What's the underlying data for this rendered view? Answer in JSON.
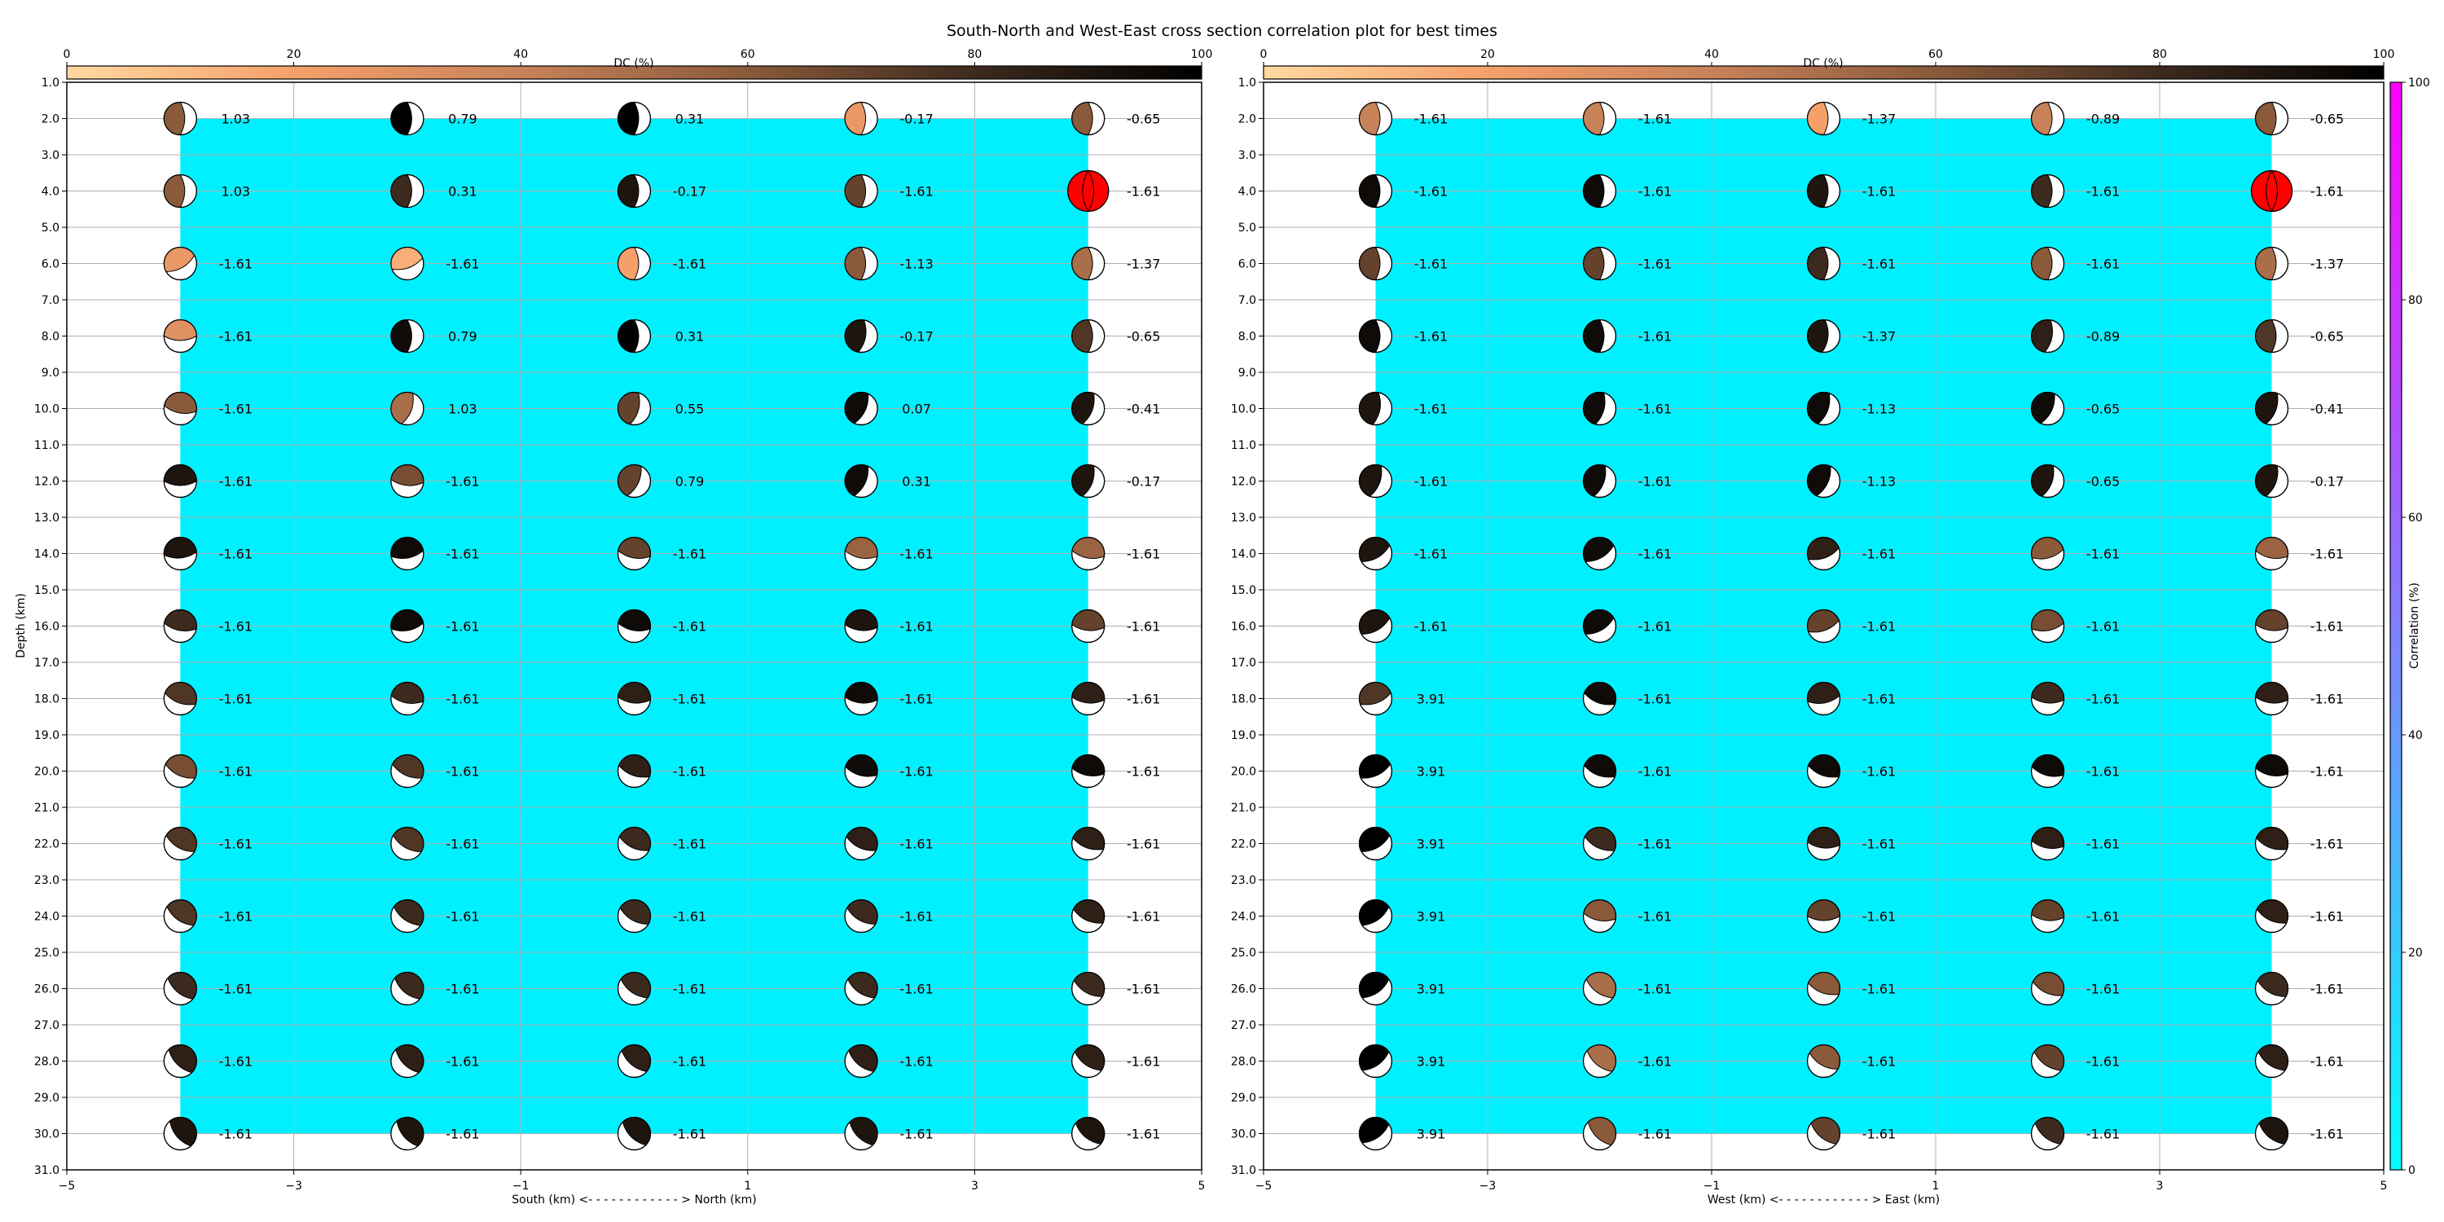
{
  "title": "South-North and West-East cross section correlation plot for best times",
  "colors": {
    "background": "#00f0ff",
    "frame": "#000000",
    "grid": "#b0b0b0",
    "best_fill": "#ff0000",
    "dc_colormap": [
      "#ffd9a0",
      "#f5a06a",
      "#c8825a",
      "#8a5a3a",
      "#3d2a1e",
      "#000000"
    ],
    "corr_colormap": [
      "#00ffff",
      "#ff00ff"
    ]
  },
  "dc_colorbar": {
    "label": "DC (%)",
    "ticks": [
      "0",
      "20",
      "40",
      "60",
      "80",
      "100"
    ]
  },
  "corr_colorbar": {
    "label": "Correlation (%)",
    "ticks": [
      "0",
      "20",
      "40",
      "60",
      "80",
      "100"
    ]
  },
  "chart_data": [
    {
      "type": "scatter",
      "subtype": "focal-mechanism-grid",
      "xlabel": "South (km) <- - - - - - - - - - - - > North (km)",
      "ylabel": "Depth (km)",
      "xlim": [
        -5,
        5
      ],
      "ylim": [
        31,
        1
      ],
      "xticks": [
        "−5",
        "−3",
        "−1",
        "1",
        "3",
        "5"
      ],
      "yticks": [
        "1.0",
        "2.0",
        "3.0",
        "4.0",
        "5.0",
        "6.0",
        "7.0",
        "8.0",
        "9.0",
        "10.0",
        "11.0",
        "12.0",
        "13.0",
        "14.0",
        "15.0",
        "16.0",
        "17.0",
        "18.0",
        "19.0",
        "20.0",
        "21.0",
        "22.0",
        "23.0",
        "24.0",
        "25.0",
        "26.0",
        "27.0",
        "28.0",
        "29.0",
        "30.0",
        "31.0"
      ],
      "x": [
        -4,
        -2,
        0,
        2,
        4
      ],
      "depths": [
        2,
        4,
        6,
        8,
        10,
        12,
        14,
        16,
        18,
        20,
        22,
        24,
        26,
        28,
        30
      ],
      "labels": [
        [
          "1.03",
          "0.79",
          "0.31",
          "-0.17",
          "-0.65"
        ],
        [
          "1.03",
          "0.31",
          "-0.17",
          "-1.61",
          "-1.61"
        ],
        [
          "-1.61",
          "-1.61",
          "-1.61",
          "-1.13",
          "-1.37"
        ],
        [
          "-1.61",
          "0.79",
          "0.31",
          "-0.17",
          "-0.65"
        ],
        [
          "-1.61",
          "1.03",
          "0.55",
          "0.07",
          "-0.41"
        ],
        [
          "-1.61",
          "-1.61",
          "0.79",
          "0.31",
          "-0.17"
        ],
        [
          "-1.61",
          "-1.61",
          "-1.61",
          "-1.61",
          "-1.61"
        ],
        [
          "-1.61",
          "-1.61",
          "-1.61",
          "-1.61",
          "-1.61"
        ],
        [
          "-1.61",
          "-1.61",
          "-1.61",
          "-1.61",
          "-1.61"
        ],
        [
          "-1.61",
          "-1.61",
          "-1.61",
          "-1.61",
          "-1.61"
        ],
        [
          "-1.61",
          "-1.61",
          "-1.61",
          "-1.61",
          "-1.61"
        ],
        [
          "-1.61",
          "-1.61",
          "-1.61",
          "-1.61",
          "-1.61"
        ],
        [
          "-1.61",
          "-1.61",
          "-1.61",
          "-1.61",
          "-1.61"
        ],
        [
          "-1.61",
          "-1.61",
          "-1.61",
          "-1.61",
          "-1.61"
        ],
        [
          "-1.61",
          "-1.61",
          "-1.61",
          "-1.61",
          "-1.61"
        ]
      ],
      "dc": [
        [
          60,
          100,
          100,
          25,
          60
        ],
        [
          60,
          80,
          90,
          70,
          60
        ],
        [
          25,
          15,
          20,
          60,
          50
        ],
        [
          30,
          95,
          100,
          90,
          75
        ],
        [
          60,
          50,
          70,
          95,
          90
        ],
        [
          90,
          65,
          70,
          95,
          90
        ],
        [
          90,
          95,
          70,
          55,
          55
        ],
        [
          80,
          95,
          95,
          90,
          70
        ],
        [
          75,
          80,
          85,
          95,
          85
        ],
        [
          65,
          75,
          85,
          95,
          95
        ],
        [
          75,
          75,
          80,
          85,
          85
        ],
        [
          75,
          80,
          80,
          80,
          85
        ],
        [
          80,
          80,
          80,
          80,
          80
        ],
        [
          85,
          85,
          85,
          85,
          85
        ],
        [
          90,
          90,
          90,
          90,
          90
        ]
      ],
      "strike": [
        [
          0,
          0,
          0,
          0,
          0
        ],
        [
          0,
          0,
          0,
          0,
          0
        ],
        [
          60,
          70,
          0,
          0,
          0
        ],
        [
          90,
          0,
          0,
          10,
          0
        ],
        [
          100,
          20,
          15,
          25,
          20
        ],
        [
          90,
          95,
          25,
          25,
          20
        ],
        [
          85,
          80,
          100,
          100,
          100
        ],
        [
          100,
          80,
          100,
          95,
          95
        ],
        [
          110,
          100,
          95,
          95,
          95
        ],
        [
          115,
          115,
          110,
          105,
          100
        ],
        [
          120,
          120,
          115,
          115,
          110
        ],
        [
          125,
          125,
          120,
          120,
          115
        ],
        [
          130,
          130,
          125,
          125,
          120
        ],
        [
          135,
          135,
          130,
          130,
          125
        ],
        [
          140,
          140,
          135,
          135,
          130
        ]
      ],
      "best": [
        1,
        4
      ]
    },
    {
      "type": "scatter",
      "subtype": "focal-mechanism-grid",
      "xlabel": "West (km) <- - - - - - - - - - - - > East (km)",
      "ylabel": "",
      "xlim": [
        -5,
        5
      ],
      "ylim": [
        31,
        1
      ],
      "xticks": [
        "−5",
        "−3",
        "−1",
        "1",
        "3",
        "5"
      ],
      "yticks": [
        "1.0",
        "2.0",
        "3.0",
        "4.0",
        "5.0",
        "6.0",
        "7.0",
        "8.0",
        "9.0",
        "10.0",
        "11.0",
        "12.0",
        "13.0",
        "14.0",
        "15.0",
        "16.0",
        "17.0",
        "18.0",
        "19.0",
        "20.0",
        "21.0",
        "22.0",
        "23.0",
        "24.0",
        "25.0",
        "26.0",
        "27.0",
        "28.0",
        "29.0",
        "30.0",
        "31.0"
      ],
      "x": [
        -4,
        -2,
        0,
        2,
        4
      ],
      "depths": [
        2,
        4,
        6,
        8,
        10,
        12,
        14,
        16,
        18,
        20,
        22,
        24,
        26,
        28,
        30
      ],
      "labels": [
        [
          "-1.61",
          "-1.61",
          "-1.37",
          "-0.89",
          "-0.65"
        ],
        [
          "-1.61",
          "-1.61",
          "-1.61",
          "-1.61",
          "-1.61"
        ],
        [
          "-1.61",
          "-1.61",
          "-1.61",
          "-1.61",
          "-1.37"
        ],
        [
          "-1.61",
          "-1.61",
          "-1.37",
          "-0.89",
          "-0.65"
        ],
        [
          "-1.61",
          "-1.61",
          "-1.13",
          "-0.65",
          "-0.41"
        ],
        [
          "-1.61",
          "-1.61",
          "-1.13",
          "-0.65",
          "-0.17"
        ],
        [
          "-1.61",
          "-1.61",
          "-1.61",
          "-1.61",
          "-1.61"
        ],
        [
          "-1.61",
          "-1.61",
          "-1.61",
          "-1.61",
          "-1.61"
        ],
        [
          "3.91",
          "-1.61",
          "-1.61",
          "-1.61",
          "-1.61"
        ],
        [
          "3.91",
          "-1.61",
          "-1.61",
          "-1.61",
          "-1.61"
        ],
        [
          "3.91",
          "-1.61",
          "-1.61",
          "-1.61",
          "-1.61"
        ],
        [
          "3.91",
          "-1.61",
          "-1.61",
          "-1.61",
          "-1.61"
        ],
        [
          "3.91",
          "-1.61",
          "-1.61",
          "-1.61",
          "-1.61"
        ],
        [
          "3.91",
          "-1.61",
          "-1.61",
          "-1.61",
          "-1.61"
        ],
        [
          "3.91",
          "-1.61",
          "-1.61",
          "-1.61",
          "-1.61"
        ]
      ],
      "dc": [
        [
          40,
          40,
          20,
          40,
          60
        ],
        [
          95,
          95,
          90,
          80,
          60
        ],
        [
          70,
          70,
          80,
          60,
          50
        ],
        [
          95,
          95,
          90,
          85,
          75
        ],
        [
          90,
          95,
          95,
          95,
          90
        ],
        [
          90,
          95,
          95,
          90,
          90
        ],
        [
          90,
          95,
          85,
          60,
          55
        ],
        [
          90,
          95,
          70,
          65,
          70
        ],
        [
          75,
          95,
          85,
          80,
          85
        ],
        [
          100,
          95,
          95,
          95,
          95
        ],
        [
          100,
          80,
          85,
          85,
          85
        ],
        [
          100,
          60,
          70,
          70,
          85
        ],
        [
          100,
          50,
          60,
          65,
          80
        ],
        [
          100,
          50,
          60,
          70,
          85
        ],
        [
          100,
          60,
          70,
          80,
          90
        ]
      ],
      "strike": [
        [
          0,
          0,
          0,
          0,
          0
        ],
        [
          0,
          0,
          0,
          0,
          0
        ],
        [
          0,
          0,
          0,
          0,
          0
        ],
        [
          0,
          0,
          5,
          10,
          0
        ],
        [
          10,
          15,
          20,
          25,
          20
        ],
        [
          20,
          20,
          25,
          20,
          20
        ],
        [
          60,
          60,
          70,
          75,
          100
        ],
        [
          60,
          60,
          70,
          80,
          95
        ],
        [
          70,
          110,
          80,
          95,
          95
        ],
        [
          65,
          110,
          110,
          105,
          100
        ],
        [
          60,
          115,
          95,
          100,
          110
        ],
        [
          55,
          100,
          90,
          95,
          115
        ],
        [
          55,
          125,
          110,
          115,
          120
        ],
        [
          55,
          130,
          120,
          125,
          125
        ],
        [
          55,
          135,
          130,
          130,
          130
        ]
      ],
      "best": [
        1,
        4
      ]
    }
  ]
}
